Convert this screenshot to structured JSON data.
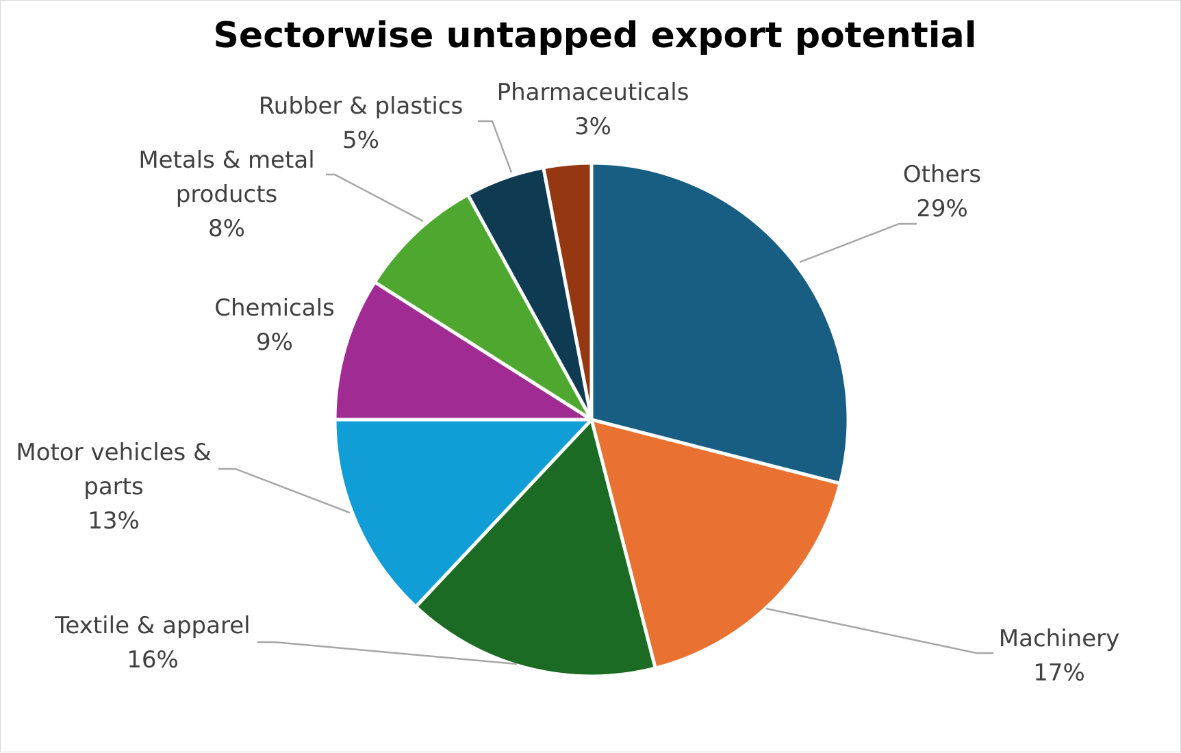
{
  "chart_data": {
    "type": "pie",
    "title": "Sectorwise untapped export potential",
    "unit": "%",
    "series": [
      {
        "values": [
          29,
          17,
          16,
          13,
          9,
          8,
          5,
          3
        ]
      }
    ],
    "slices": [
      {
        "label": "Others",
        "value": 29,
        "value_label": "29%",
        "color": "#175e82"
      },
      {
        "label": "Machinery",
        "value": 17,
        "value_label": "17%",
        "color": "#e97131"
      },
      {
        "label": "Textile & apparel",
        "value": 16,
        "value_label": "16%",
        "color": "#1c6b24"
      },
      {
        "label": "Motor vehicles & parts",
        "value": 13,
        "value_label": "13%",
        "color": "#119ed6"
      },
      {
        "label": "Chemicals",
        "value": 9,
        "value_label": "9%",
        "color": "#a02b93"
      },
      {
        "label": "Metals & metal products",
        "value": 8,
        "value_label": "8%",
        "color": "#4ea72e"
      },
      {
        "label": "Rubber & plastics",
        "value": 5,
        "value_label": "5%",
        "color": "#0e3a52"
      },
      {
        "label": "Pharmaceuticals",
        "value": 3,
        "value_label": "3%",
        "color": "#953812"
      }
    ],
    "legend": "none",
    "data_labels": "outside-with-leader-lines"
  }
}
